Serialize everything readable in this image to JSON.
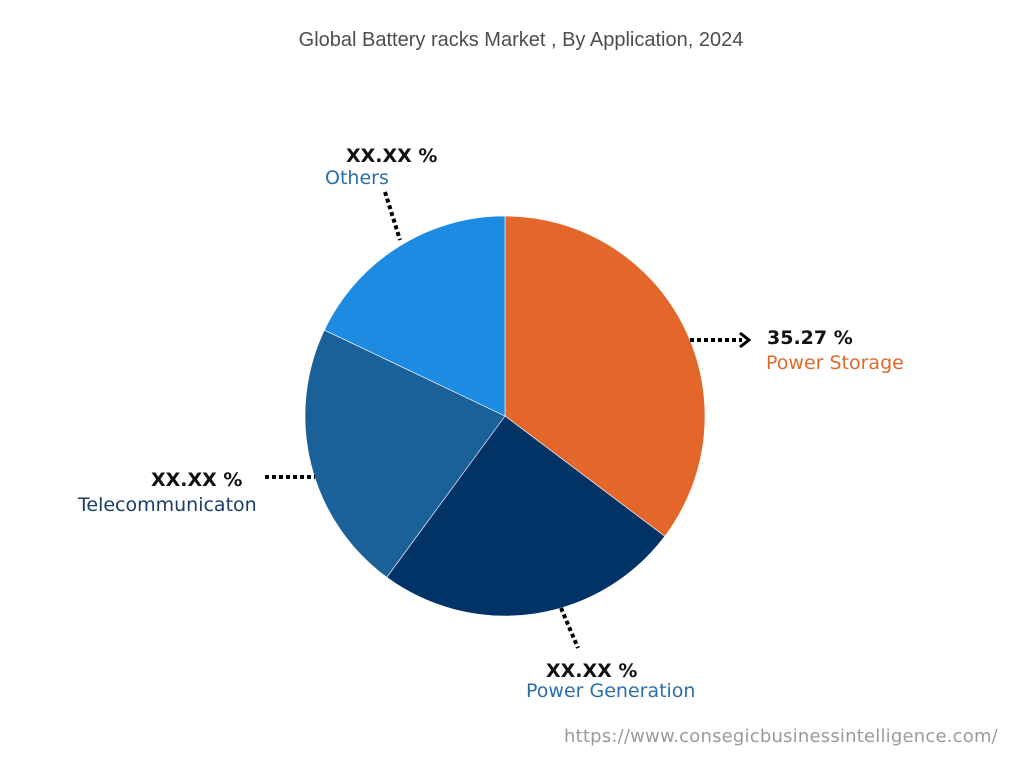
{
  "title": "Global Battery racks Market , By Application, 2024",
  "source_url": "https://www.consegicbusinessintelligence.com/",
  "labels": {
    "power_storage": {
      "value": "35.27 %",
      "name": "Power Storage",
      "color": "#e0692a"
    },
    "power_generation": {
      "value": "XX.XX %",
      "name": "Power Generation",
      "color": "#2a6fa8"
    },
    "telecommunication": {
      "value": "XX.XX %",
      "name": "Telecommunicaton",
      "color": "#1a3d66"
    },
    "others": {
      "value": "XX.XX %",
      "name": "Others",
      "color": "#2a6fa8"
    }
  },
  "chart_data": {
    "type": "pie",
    "title": "Global Battery racks Market , By Application, 2024",
    "categories": [
      "Power Storage",
      "Power Generation",
      "Telecommunicaton",
      "Others"
    ],
    "values": [
      35.27,
      24.8,
      22.0,
      17.93
    ],
    "value_labels": [
      "35.27 %",
      "XX.XX %",
      "XX.XX %",
      "XX.XX %"
    ],
    "colors": [
      "#e3672a",
      "#023366",
      "#1a6099",
      "#1e8be3"
    ],
    "start_angle": "12 o'clock, clockwise",
    "legend": "none (callout labels)"
  }
}
